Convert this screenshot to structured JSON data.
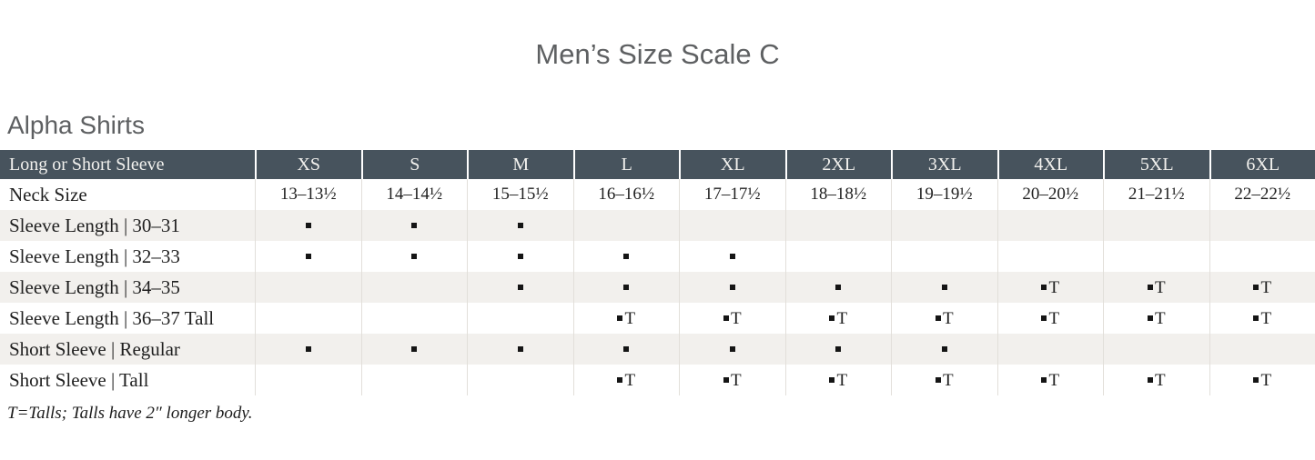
{
  "page": {
    "title": "Men’s Size Scale C",
    "section_heading": "Alpha Shirts",
    "footnote": "T=Talls; Talls have 2″ longer body."
  },
  "table": {
    "header": {
      "label": "Long or Short Sleeve",
      "sizes": [
        "XS",
        "S",
        "M",
        "L",
        "XL",
        "2XL",
        "3XL",
        "4XL",
        "5XL",
        "6XL"
      ]
    },
    "neck_row": {
      "label": "Neck Size",
      "values": [
        "13–13½",
        "14–14½",
        "15–15½",
        "16–16½",
        "17–17½",
        "18–18½",
        "19–19½",
        "20–20½",
        "21–21½",
        "22–22½"
      ]
    },
    "marker_rows": [
      {
        "label": "Sleeve Length | 30–31",
        "cells": [
          "dot",
          "dot",
          "dot",
          "",
          "",
          "",
          "",
          "",
          "",
          ""
        ]
      },
      {
        "label": "Sleeve Length | 32–33",
        "cells": [
          "dot",
          "dot",
          "dot",
          "dot",
          "dot",
          "",
          "",
          "",
          "",
          ""
        ]
      },
      {
        "label": "Sleeve Length | 34–35",
        "cells": [
          "",
          "",
          "dot",
          "dot",
          "dot",
          "dot",
          "dot",
          "dotT",
          "dotT",
          "dotT"
        ]
      },
      {
        "label": "Sleeve Length | 36–37 Tall",
        "cells": [
          "",
          "",
          "",
          "dotT",
          "dotT",
          "dotT",
          "dotT",
          "dotT",
          "dotT",
          "dotT"
        ]
      },
      {
        "label": "Short Sleeve | Regular",
        "cells": [
          "dot",
          "dot",
          "dot",
          "dot",
          "dot",
          "dot",
          "dot",
          "",
          "",
          ""
        ]
      },
      {
        "label": "Short Sleeve | Tall",
        "cells": [
          "",
          "",
          "",
          "dotT",
          "dotT",
          "dotT",
          "dotT",
          "dotT",
          "dotT",
          "dotT"
        ]
      }
    ],
    "legend": {
      "tall_suffix": "T"
    }
  },
  "colors": {
    "header_bg": "#47535d",
    "header_text": "#f2f1ee",
    "stripe_bg": "#f2f0ed",
    "grid_line": "#e2dfda",
    "title_text": "#5e6062",
    "body_text": "#1f1f1f"
  }
}
